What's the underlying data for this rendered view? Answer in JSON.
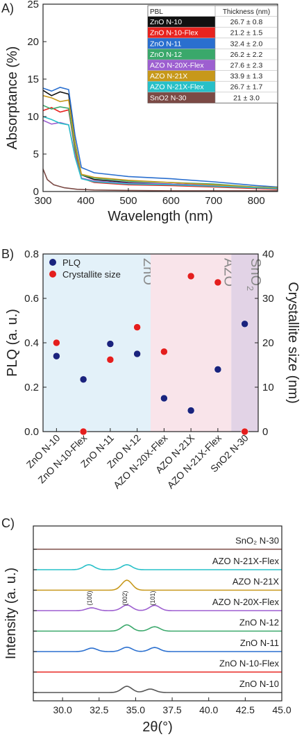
{
  "chart_data": [
    {
      "panel": "A)",
      "type": "line",
      "xlabel": "Wavelength (nm)",
      "ylabel": "Absorptance (%)",
      "xlim": [
        300,
        850
      ],
      "ylim": [
        0,
        25
      ],
      "xticks": [
        300,
        400,
        500,
        600,
        700,
        800
      ],
      "yticks": [
        0,
        5,
        10,
        15,
        20,
        25
      ],
      "table": {
        "headers": [
          "PBL",
          "Thickness (nm)"
        ],
        "rows": [
          {
            "name": "ZnO N-10",
            "thickness": "26.7 ± 0.8",
            "color": "#111111"
          },
          {
            "name": "ZnO N-10-Flex",
            "thickness": "21.2 ± 1.5",
            "color": "#e8231f"
          },
          {
            "name": "ZnO N-11",
            "thickness": "32.4 ± 2.0",
            "color": "#2a6fcf"
          },
          {
            "name": "ZnO N-12",
            "thickness": "26.2 ± 2.2",
            "color": "#3aa86b"
          },
          {
            "name": "AZO N-20X-Flex",
            "thickness": "27.6 ± 2.3",
            "color": "#9d5fd0"
          },
          {
            "name": "AZO N-21X",
            "thickness": "33.9 ± 1.3",
            "color": "#c7981a"
          },
          {
            "name": "AZO N-21X-Flex",
            "thickness": "26.7 ± 1.7",
            "color": "#27c0c8"
          },
          {
            "name": "SnO2 N-30",
            "thickness": "21 ± 3.0",
            "color": "#7b4a45"
          }
        ]
      },
      "series": [
        {
          "name": "ZnO N-10",
          "color": "#111111",
          "x": [
            300,
            320,
            340,
            360,
            375,
            390,
            420,
            500,
            600,
            700,
            800,
            850
          ],
          "values": [
            13.5,
            12.8,
            13.3,
            13.0,
            6.5,
            2.2,
            1.6,
            1.2,
            1.0,
            0.8,
            0.5,
            0.4
          ]
        },
        {
          "name": "ZnO N-10-Flex",
          "color": "#e8231f",
          "x": [
            300,
            320,
            340,
            360,
            375,
            390,
            420,
            500,
            600,
            700,
            800,
            850
          ],
          "values": [
            10.8,
            11.2,
            10.6,
            10.9,
            5.5,
            1.8,
            1.2,
            0.9,
            0.8,
            0.6,
            0.4,
            0.3
          ]
        },
        {
          "name": "ZnO N-11",
          "color": "#2a6fcf",
          "x": [
            300,
            320,
            340,
            360,
            375,
            390,
            420,
            500,
            600,
            700,
            800,
            850
          ],
          "values": [
            13.8,
            13.4,
            13.9,
            13.6,
            7.5,
            3.2,
            2.5,
            2.0,
            1.7,
            1.3,
            0.8,
            0.6
          ]
        },
        {
          "name": "ZnO N-12",
          "color": "#3aa86b",
          "x": [
            300,
            320,
            340,
            360,
            375,
            390,
            420,
            500,
            600,
            700,
            800,
            850
          ],
          "values": [
            11.5,
            11.0,
            11.3,
            11.1,
            5.8,
            2.2,
            1.8,
            1.4,
            1.2,
            1.0,
            0.6,
            0.5
          ]
        },
        {
          "name": "AZO N-20X-Flex",
          "color": "#9d5fd0",
          "x": [
            300,
            320,
            340,
            360,
            375,
            390,
            420,
            500,
            600,
            700,
            800,
            850
          ],
          "values": [
            9.5,
            9.0,
            9.2,
            8.9,
            4.8,
            1.8,
            1.4,
            1.1,
            1.0,
            0.8,
            0.5,
            0.4
          ]
        },
        {
          "name": "AZO N-21X",
          "color": "#c7981a",
          "x": [
            300,
            320,
            340,
            360,
            375,
            390,
            420,
            500,
            600,
            700,
            800,
            850
          ],
          "values": [
            12.8,
            12.5,
            12.0,
            12.2,
            6.5,
            2.3,
            1.9,
            1.5,
            1.2,
            0.9,
            0.6,
            0.5
          ]
        },
        {
          "name": "AZO N-21X-Flex",
          "color": "#27c0c8",
          "x": [
            300,
            320,
            340,
            360,
            375,
            390,
            420,
            500,
            600,
            700,
            800,
            850
          ],
          "values": [
            10.0,
            9.6,
            9.1,
            8.9,
            4.6,
            1.7,
            1.3,
            1.0,
            0.9,
            0.7,
            0.5,
            0.4
          ]
        },
        {
          "name": "SnO2 N-30",
          "color": "#7b4a45",
          "x": [
            300,
            310,
            325,
            350,
            380,
            420,
            500,
            600,
            700,
            800,
            850
          ],
          "values": [
            3.0,
            1.6,
            0.9,
            0.5,
            0.3,
            0.2,
            0.15,
            0.1,
            0.1,
            0.1,
            0.1
          ]
        }
      ]
    },
    {
      "panel": "B)",
      "type": "scatter",
      "ylabel": "PLQ (a. u.)",
      "y2label": "Crystallite size (nm)",
      "ylim": [
        0.0,
        0.8
      ],
      "y2lim": [
        0,
        40
      ],
      "yticks": [
        0.0,
        0.2,
        0.4,
        0.6,
        0.8
      ],
      "y2ticks": [
        0,
        10,
        20,
        30,
        40
      ],
      "categories": [
        "ZnO N-10",
        "ZnO N-10-Flex",
        "ZnO N-11",
        "ZnO N-12",
        "AZO N-20X-Flex",
        "AZO N-21X",
        "AZO N-21X-Flex",
        "SnO2 N-30"
      ],
      "legend": "top-left",
      "regions": [
        {
          "label": "ZnO",
          "from": 0,
          "to": 3,
          "color": "#e3f1f9"
        },
        {
          "label": "AZO",
          "from": 4,
          "to": 6,
          "color": "#f9e4ea"
        },
        {
          "label": "SnO",
          "sub": "2",
          "from": 7,
          "to": 7,
          "color": "#e2d3e6"
        }
      ],
      "series": [
        {
          "name": "PLQ",
          "axis": "left",
          "color": "#1a237e",
          "values": [
            0.34,
            0.235,
            0.395,
            0.35,
            0.15,
            0.095,
            0.28,
            0.485
          ]
        },
        {
          "name": "Crystallite size",
          "axis": "right",
          "color": "#e41e1e",
          "values": [
            20.0,
            0.0,
            16.2,
            23.5,
            18.0,
            35.0,
            33.6,
            0.0
          ]
        }
      ]
    },
    {
      "panel": "C)",
      "type": "line",
      "xlabel": "2θ(°)",
      "ylabel": "Intensity (a. u.)",
      "xlim": [
        28,
        45
      ],
      "xticks": [
        30.0,
        32.5,
        35.0,
        37.5,
        40.0,
        42.5,
        45.0
      ],
      "annotations": [
        {
          "text": "(100)",
          "x": 32.0
        },
        {
          "text": "(002)",
          "x": 34.4
        },
        {
          "text": "(101)",
          "x": 36.3
        }
      ],
      "series": [
        {
          "name": "ZnO N-10",
          "color": "#555555",
          "peaks": [
            [
              34.4,
              1.0
            ],
            [
              36.0,
              0.55
            ]
          ]
        },
        {
          "name": "ZnO N-10-Flex",
          "color": "#e8231f",
          "peaks": []
        },
        {
          "name": "ZnO N-11",
          "color": "#2a6fcf",
          "peaks": [
            [
              32.0,
              0.55
            ],
            [
              34.4,
              0.7
            ],
            [
              36.3,
              0.65
            ]
          ]
        },
        {
          "name": "ZnO N-12",
          "color": "#3aa86b",
          "peaks": [
            [
              34.4,
              1.0
            ],
            [
              36.3,
              0.7
            ]
          ]
        },
        {
          "name": "AZO N-20X-Flex",
          "color": "#9d5fd0",
          "peaks": [
            [
              32.0,
              0.45
            ],
            [
              34.4,
              0.9
            ],
            [
              36.3,
              0.85
            ]
          ]
        },
        {
          "name": "AZO N-21X",
          "color": "#c7981a",
          "peaks": [
            [
              34.4,
              1.6
            ]
          ]
        },
        {
          "name": "AZO N-21X-Flex",
          "color": "#27c0c8",
          "peaks": [
            [
              31.8,
              0.8
            ],
            [
              34.4,
              0.8
            ]
          ]
        },
        {
          "name": "SnO₂ N-30",
          "color": "#7b4a45",
          "peaks": []
        }
      ]
    }
  ]
}
